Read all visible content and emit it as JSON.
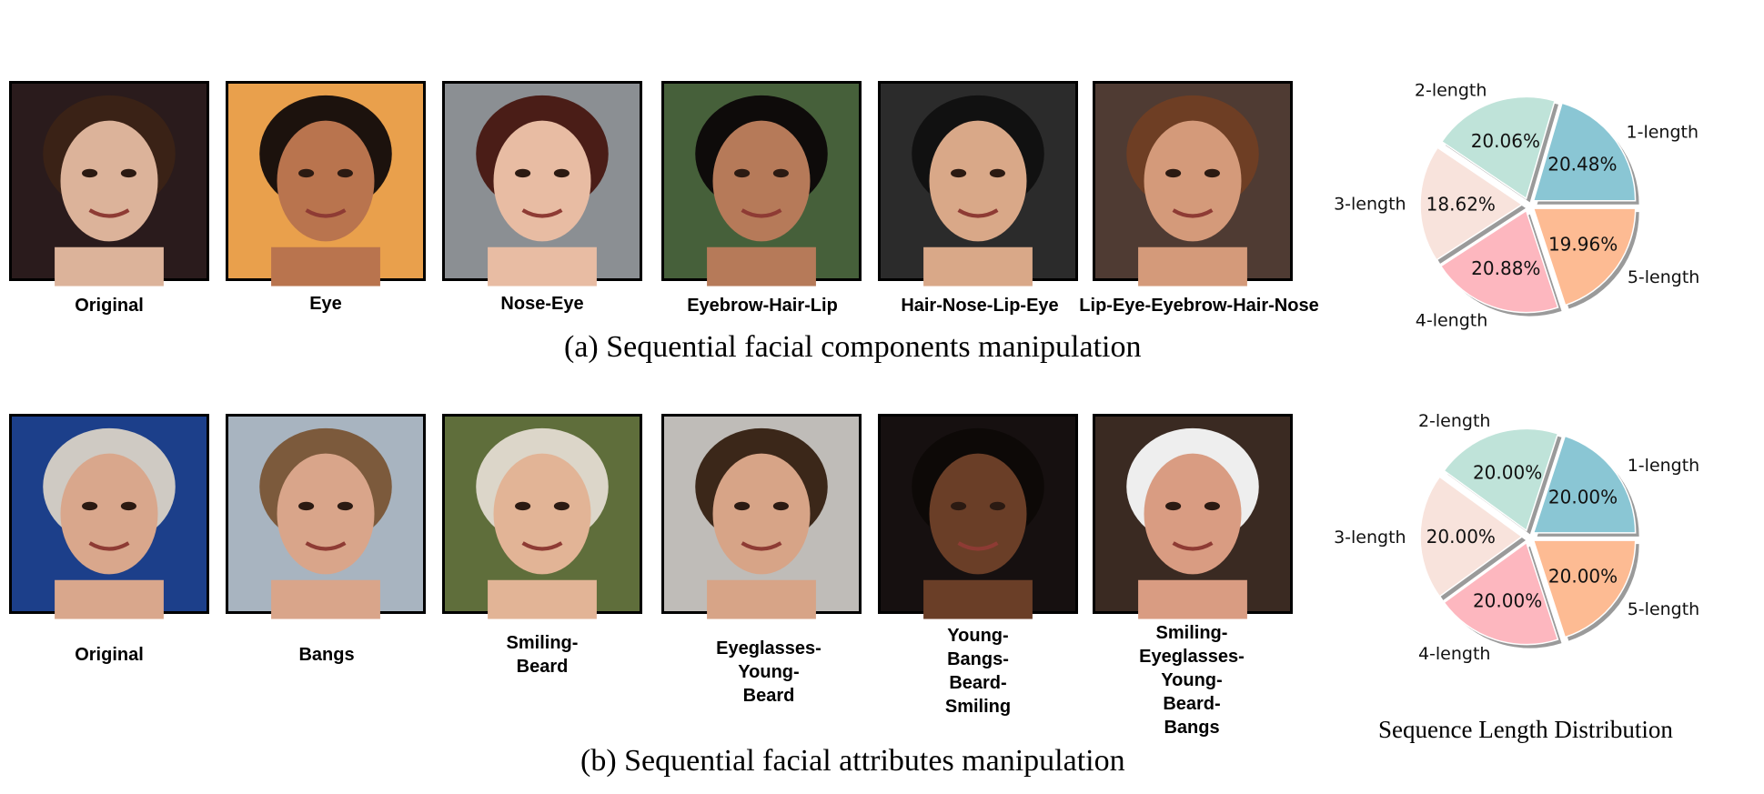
{
  "row_a": {
    "caption": "(a) Sequential facial components manipulation",
    "labels": [
      "Original",
      "Eye",
      "Nose-Eye",
      "Eyebrow-Hair-Lip",
      "Hair-Nose-Lip-Eye",
      "Lip-Eye-Eyebrow-Hair-Nose"
    ],
    "faces": [
      {
        "bg": "#2a1b1c",
        "skin": "#dcb39a",
        "hair": "#3a2216"
      },
      {
        "bg": "#e9a04c",
        "skin": "#b9744e",
        "hair": "#1c120d"
      },
      {
        "bg": "#8b8f93",
        "skin": "#e8bca3",
        "hair": "#4a1d17"
      },
      {
        "bg": "#46603a",
        "skin": "#b67a59",
        "hair": "#0e0b0a"
      },
      {
        "bg": "#2b2b2b",
        "skin": "#d9a888",
        "hair": "#111111"
      },
      {
        "bg": "#4f3b33",
        "skin": "#d49a7a",
        "hair": "#6e3e24"
      }
    ]
  },
  "row_b": {
    "caption": "(b) Sequential facial attributes manipulation",
    "labels": [
      "Original",
      "Bangs",
      "Smiling-\nBeard",
      "Eyeglasses-\nYoung-\nBeard",
      "Young-\nBangs-\nBeard-\nSmiling",
      "Smiling-\nEyeglasses-\nYoung-\nBeard-\nBangs"
    ],
    "faces": [
      {
        "bg": "#1c3f8a",
        "skin": "#d9a78c",
        "hair": "#cfcac3"
      },
      {
        "bg": "#a8b4c0",
        "skin": "#d9a58a",
        "hair": "#7c5a3c"
      },
      {
        "bg": "#5f6e3b",
        "skin": "#e2b496",
        "hair": "#dcd6c9"
      },
      {
        "bg": "#bfbcb8",
        "skin": "#d7a487",
        "hair": "#3b2719"
      },
      {
        "bg": "#161010",
        "skin": "#6a3e27",
        "hair": "#0d0907"
      },
      {
        "bg": "#3a2a22",
        "skin": "#d99c82",
        "hair": "#eeeeee"
      }
    ]
  },
  "pies": [
    {
      "chart_data": {
        "type": "pie",
        "slices": [
          {
            "label": "1-length",
            "value": 20.48,
            "pct": "20.48%",
            "color": "#8ac6d4"
          },
          {
            "label": "2-length",
            "value": 20.06,
            "pct": "20.06%",
            "color": "#bfe3d9"
          },
          {
            "label": "3-length",
            "value": 18.62,
            "pct": "18.62%",
            "color": "#f8e3dc"
          },
          {
            "label": "4-length",
            "value": 20.88,
            "pct": "20.88%",
            "color": "#fdb7bf"
          },
          {
            "label": "5-length",
            "value": 19.96,
            "pct": "19.96%",
            "color": "#fdbb93"
          }
        ]
      }
    },
    {
      "chart_data": {
        "type": "pie",
        "title": "Sequence Length Distribution",
        "slices": [
          {
            "label": "1-length",
            "value": 20.0,
            "pct": "20.00%",
            "color": "#8ac6d4"
          },
          {
            "label": "2-length",
            "value": 20.0,
            "pct": "20.00%",
            "color": "#bfe3d9"
          },
          {
            "label": "3-length",
            "value": 20.0,
            "pct": "20.00%",
            "color": "#f8e3dc"
          },
          {
            "label": "4-length",
            "value": 20.0,
            "pct": "20.00%",
            "color": "#fdb7bf"
          },
          {
            "label": "5-length",
            "value": 20.0,
            "pct": "20.00%",
            "color": "#fdbb93"
          }
        ]
      }
    }
  ]
}
